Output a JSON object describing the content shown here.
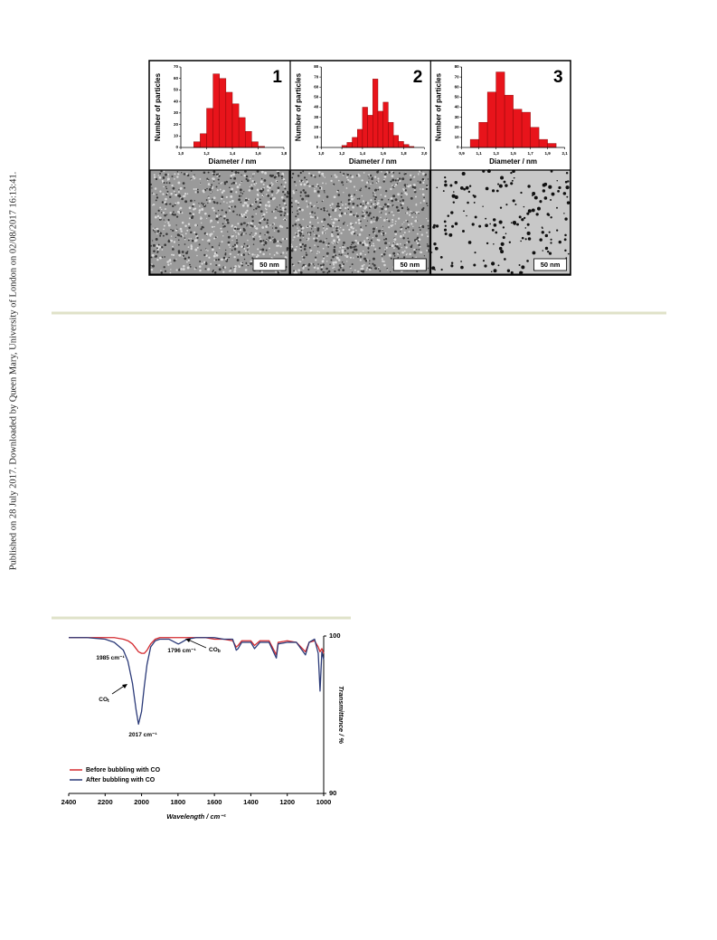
{
  "side_note": "Published on 28 July 2017. Downloaded by Queen Mary, University of London on 02/08/2017 16:13:41.",
  "tem_images": [
    {
      "scale_bar": "50 nm"
    },
    {
      "scale_bar": "50 nm"
    },
    {
      "scale_bar": "50 nm"
    }
  ],
  "chart_data": [
    {
      "type": "histogram",
      "title": "1",
      "x_label": "Diameter / nm",
      "y_label": "Number of particles",
      "color": "#e8141b",
      "bins": [
        1.1,
        1.15,
        1.2,
        1.25,
        1.3,
        1.35,
        1.4,
        1.45,
        1.5,
        1.55,
        1.6,
        1.65
      ],
      "values": [
        5,
        12,
        34,
        64,
        60,
        48,
        38,
        26,
        14,
        5,
        1
      ],
      "xlim": [
        1.0,
        1.8
      ],
      "xticks": [
        {
          "value": 1.0,
          "label": "1,0"
        },
        {
          "value": 1.2,
          "label": "1,2"
        },
        {
          "value": 1.4,
          "label": "1,4"
        },
        {
          "value": 1.6,
          "label": "1,6"
        },
        {
          "value": 1.8,
          "label": "1,8"
        }
      ],
      "ylim": [
        0,
        70
      ],
      "yticks": [
        0,
        10,
        20,
        30,
        40,
        50,
        60,
        70
      ]
    },
    {
      "type": "histogram",
      "title": "2",
      "x_label": "Diameter / nm",
      "y_label": "Number of particles",
      "color": "#e8141b",
      "bins": [
        1.2,
        1.25,
        1.3,
        1.35,
        1.4,
        1.45,
        1.5,
        1.55,
        1.6,
        1.65,
        1.7,
        1.75,
        1.8,
        1.85,
        1.9
      ],
      "values": [
        2,
        5,
        10,
        18,
        40,
        32,
        68,
        36,
        45,
        25,
        12,
        6,
        3,
        1
      ],
      "xlim": [
        1.0,
        2.0
      ],
      "xticks": [
        {
          "value": 1.0,
          "label": "1,0"
        },
        {
          "value": 1.2,
          "label": "1,2"
        },
        {
          "value": 1.4,
          "label": "1,4"
        },
        {
          "value": 1.6,
          "label": "1,6"
        },
        {
          "value": 1.8,
          "label": "1,8"
        },
        {
          "value": 2.0,
          "label": "2,0"
        }
      ],
      "ylim": [
        0,
        80
      ],
      "yticks": [
        0,
        10,
        20,
        30,
        40,
        50,
        60,
        70,
        80
      ]
    },
    {
      "type": "histogram",
      "title": "3",
      "x_label": "Diameter / nm",
      "y_label": "Number of particles",
      "color": "#e8141b",
      "bins": [
        1.0,
        1.1,
        1.2,
        1.3,
        1.4,
        1.5,
        1.6,
        1.7,
        1.8,
        1.9,
        2.0
      ],
      "values": [
        8,
        25,
        55,
        75,
        52,
        38,
        35,
        20,
        8,
        4
      ],
      "xlim": [
        0.9,
        2.1
      ],
      "xticks": [
        {
          "value": 0.9,
          "label": "0,9"
        },
        {
          "value": 1.1,
          "label": "1,1"
        },
        {
          "value": 1.3,
          "label": "1,3"
        },
        {
          "value": 1.5,
          "label": "1,5"
        },
        {
          "value": 1.7,
          "label": "1,7"
        },
        {
          "value": 1.9,
          "label": "1,9"
        },
        {
          "value": 2.1,
          "label": "2,1"
        }
      ],
      "ylim": [
        0,
        80
      ],
      "yticks": [
        0,
        10,
        20,
        30,
        40,
        50,
        60,
        70,
        80
      ]
    },
    {
      "type": "line",
      "x_label": "Wavelength / cm⁻¹",
      "y_label": "Transmittance / %",
      "legend": "lower left",
      "x": [
        2400,
        2300,
        2200,
        2150,
        2100,
        2075,
        2050,
        2030,
        2017,
        2000,
        1985,
        1970,
        1950,
        1925,
        1900,
        1850,
        1800,
        1796,
        1780,
        1750,
        1700,
        1650,
        1600,
        1550,
        1500,
        1480,
        1470,
        1450,
        1400,
        1380,
        1350,
        1300,
        1260,
        1250,
        1200,
        1150,
        1100,
        1090,
        1080,
        1050,
        1030,
        1020,
        1010,
        1000
      ],
      "series": [
        {
          "name": "Before bubbling with CO",
          "color": "#d42a2f",
          "values": [
            99.9,
            99.9,
            99.9,
            99.9,
            99.8,
            99.7,
            99.5,
            99.2,
            99.0,
            98.9,
            98.9,
            99.1,
            99.5,
            99.8,
            99.9,
            99.9,
            99.9,
            99.9,
            99.9,
            99.9,
            99.9,
            99.9,
            99.8,
            99.8,
            99.7,
            99.3,
            99.4,
            99.7,
            99.7,
            99.4,
            99.7,
            99.7,
            98.8,
            99.6,
            99.7,
            99.6,
            99.0,
            99.3,
            99.6,
            99.7,
            99.3,
            99.0,
            99.2,
            98.9
          ]
        },
        {
          "name": "After bubbling with CO",
          "color": "#2b3a78",
          "values": [
            99.9,
            99.9,
            99.8,
            99.6,
            99.1,
            98.4,
            97.0,
            95.3,
            94.4,
            95.2,
            96.8,
            98.2,
            99.3,
            99.7,
            99.8,
            99.8,
            99.5,
            99.5,
            99.6,
            99.8,
            99.9,
            99.9,
            99.9,
            99.8,
            99.8,
            99.1,
            99.2,
            99.6,
            99.6,
            99.2,
            99.6,
            99.6,
            98.6,
            99.5,
            99.6,
            99.6,
            98.8,
            99.2,
            99.6,
            99.8,
            98.9,
            96.5,
            99.0,
            98.5
          ]
        }
      ],
      "annotations": [
        {
          "text": "1985 cm⁻¹",
          "color": "#d42a2f"
        },
        {
          "text": "1796 cm⁻¹",
          "color": "#2b3a78"
        },
        {
          "text": "2017 cm⁻¹",
          "color": "#2b3a78"
        },
        {
          "text": "CO",
          "sub": "t",
          "color": "#000000"
        },
        {
          "text": "CO",
          "sub": "b",
          "color": "#000000"
        }
      ],
      "xlim": [
        2400,
        1000
      ],
      "xticks": [
        2400,
        2200,
        2000,
        1800,
        1600,
        1400,
        1200,
        1000
      ],
      "ylim": [
        90,
        100
      ],
      "yticks": [
        90,
        100
      ]
    }
  ]
}
